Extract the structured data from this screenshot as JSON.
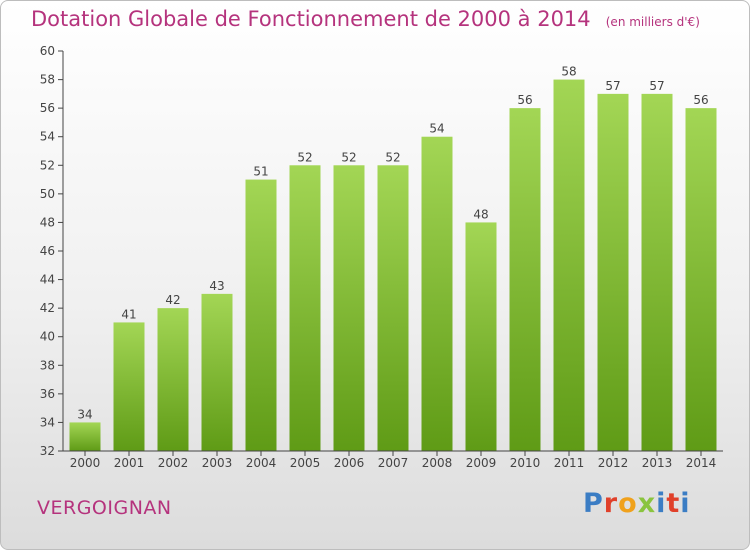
{
  "header": {
    "title": "Dotation Globale de Fonctionnement de 2000 à 2014",
    "unit": "(en milliers d'€)"
  },
  "footer": {
    "commune": "VERGOIGNAN",
    "brand": "Proxiti"
  },
  "colors": {
    "title": "#b5337d",
    "bar_top": "#a3d655",
    "bar_bottom": "#5f9b16",
    "brand_letters": [
      "#3b7dc4",
      "#e0402a",
      "#f0a11c",
      "#8ac43f",
      "#3b7dc4",
      "#e0402a",
      "#3b7dc4"
    ]
  },
  "chart_data": {
    "type": "bar",
    "title": "Dotation Globale de Fonctionnement de 2000 à 2014",
    "subtitle": "(en milliers d'€)",
    "xlabel": "",
    "ylabel": "",
    "categories": [
      "2000",
      "2001",
      "2002",
      "2003",
      "2004",
      "2005",
      "2006",
      "2007",
      "2008",
      "2009",
      "2010",
      "2011",
      "2012",
      "2013",
      "2014"
    ],
    "values": [
      34,
      41,
      42,
      43,
      51,
      52,
      52,
      52,
      54,
      48,
      56,
      58,
      57,
      57,
      56
    ],
    "ylim": [
      32,
      60
    ],
    "yticks": [
      32,
      34,
      36,
      38,
      40,
      42,
      44,
      46,
      48,
      50,
      52,
      54,
      56,
      58,
      60
    ],
    "grid": false,
    "data_labels": true
  }
}
